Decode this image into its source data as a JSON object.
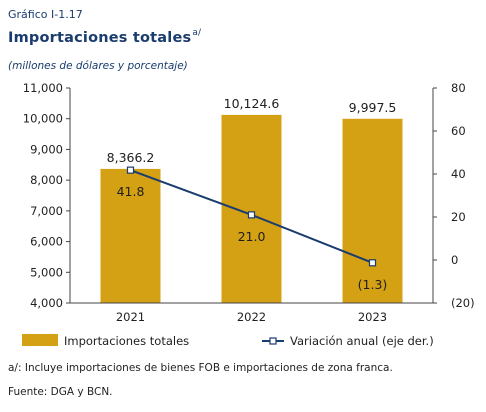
{
  "header": {
    "graph_label": "Gráfico I-1.17",
    "title": "Importaciones totales",
    "title_note": "a/",
    "subtitle": "(millones de dólares y porcentaje)"
  },
  "chart_data": {
    "type": "bar",
    "categories": [
      "2021",
      "2022",
      "2023"
    ],
    "series": [
      {
        "name": "Importaciones totales",
        "kind": "bar",
        "axis": "left",
        "values": [
          8366.2,
          10124.6,
          9997.5
        ],
        "labels": [
          "8,366.2",
          "10,124.6",
          "9,997.5"
        ],
        "color": "#d4a014"
      },
      {
        "name": "Variación anual (eje der.)",
        "kind": "line",
        "axis": "right",
        "values": [
          41.8,
          21.0,
          -1.3
        ],
        "labels": [
          "41.8",
          "21.0",
          "(1.3)"
        ],
        "color": "#1a3c6e"
      }
    ],
    "y_left": {
      "min": 4000,
      "max": 11000,
      "ticks": [
        "4,000",
        "5,000",
        "6,000",
        "7,000",
        "8,000",
        "9,000",
        "10,000",
        "11,000"
      ]
    },
    "y_right": {
      "min": -20,
      "max": 80,
      "ticks": [
        "(20)",
        "0",
        "20",
        "40",
        "60",
        "80"
      ]
    },
    "grid": false,
    "legend": "bottom"
  },
  "footer": {
    "note": "a/: Incluye importaciones de bienes FOB e importaciones de zona franca.",
    "source": "Fuente: DGA y BCN."
  }
}
